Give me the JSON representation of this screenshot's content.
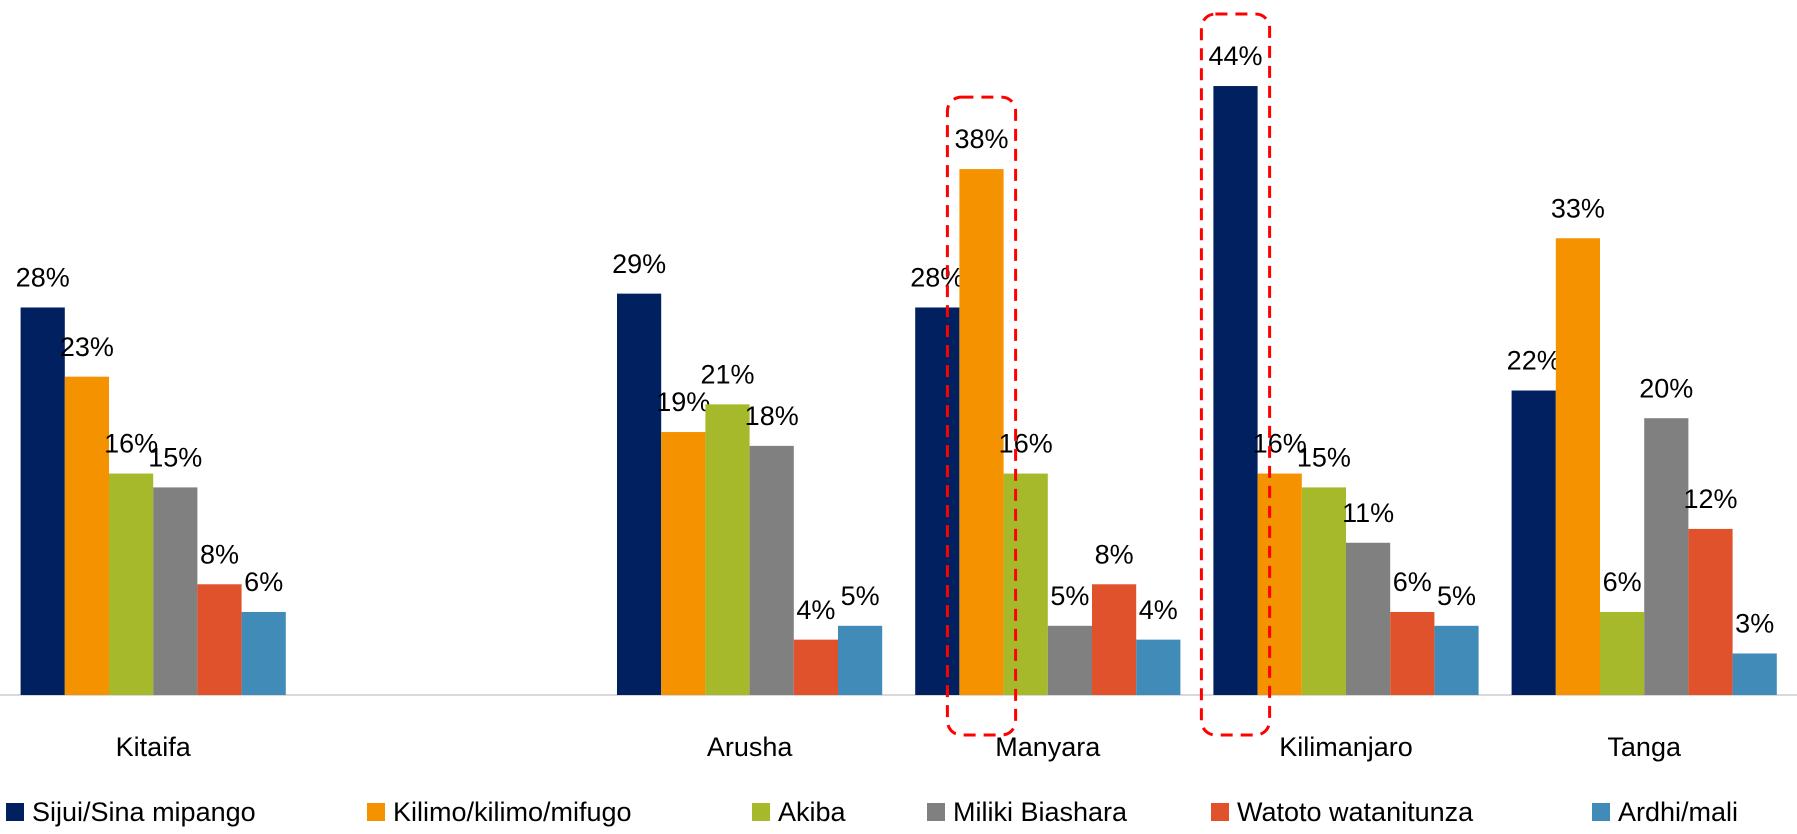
{
  "chart_data": {
    "type": "bar",
    "categories": [
      "Kitaifa",
      null,
      "Arusha",
      "Manyara",
      "Kilimanjaro",
      "Tanga"
    ],
    "ylim": [
      0,
      50
    ],
    "series": [
      {
        "name": "Sijui/Sina mipango",
        "color": "#002060",
        "values": [
          28,
          null,
          29,
          28,
          44,
          22
        ],
        "value_labels": [
          "28%",
          null,
          "29%",
          "28%",
          "44%",
          "22%"
        ]
      },
      {
        "name": "Kilimo/kilimo/mifugo",
        "color": "#f59200",
        "values": [
          23,
          null,
          19,
          38,
          16,
          33
        ],
        "value_labels": [
          "23%",
          null,
          "19%",
          "38%",
          "16%",
          "33%"
        ]
      },
      {
        "name": "Akiba",
        "color": "#a5b92b",
        "values": [
          16,
          null,
          21,
          16,
          15,
          6
        ],
        "value_labels": [
          "16%",
          null,
          "21%",
          "16%",
          "15%",
          "6%"
        ]
      },
      {
        "name": "Miliki Biashara",
        "color": "#808080",
        "values": [
          15,
          null,
          18,
          5,
          11,
          20
        ],
        "value_labels": [
          "15%",
          null,
          "18%",
          "5%",
          "11%",
          "20%"
        ]
      },
      {
        "name": "Watoto watanitunza",
        "color": "#e0522b",
        "values": [
          8,
          null,
          4,
          8,
          6,
          12
        ],
        "value_labels": [
          "8%",
          null,
          "4%",
          "8%",
          "6%",
          "12%"
        ]
      },
      {
        "name": "Ardhi/mali",
        "color": "#418bb8",
        "values": [
          6,
          null,
          5,
          4,
          5,
          3
        ],
        "value_labels": [
          "6%",
          null,
          "5%",
          "4%",
          "5%",
          "3%"
        ]
      }
    ]
  }
}
